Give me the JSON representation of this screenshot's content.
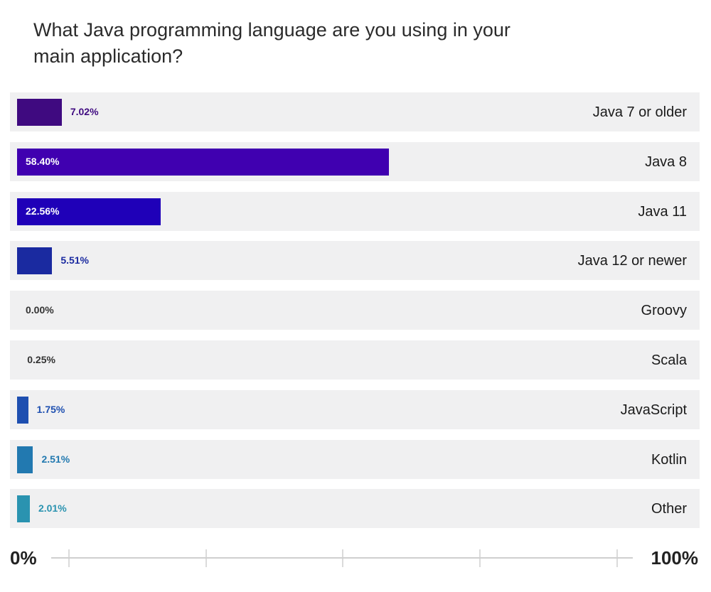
{
  "chart_data": {
    "type": "bar",
    "orientation": "horizontal",
    "title": "What Java programming language are you using in your main application?",
    "categories": [
      "Java 7 or older",
      "Java 8",
      "Java 11",
      "Java 12 or newer",
      "Groovy",
      "Scala",
      "JavaScript",
      "Kotlin",
      "Other"
    ],
    "values": [
      7.02,
      58.4,
      22.56,
      5.51,
      0.0,
      0.25,
      1.75,
      2.51,
      2.01
    ],
    "labels": [
      "7.02%",
      "58.40%",
      "22.56%",
      "5.51%",
      "0.00%",
      "0.25%",
      "1.75%",
      "2.51%",
      "2.01%"
    ],
    "colors": [
      "#3f0a80",
      "#4000b0",
      "#1f00b8",
      "#1a2aa0",
      "#1a2aa0",
      "#333333",
      "#1e4fb0",
      "#2279b0",
      "#2a93b0"
    ],
    "label_colors": [
      "#3f0a80",
      "#ffffff",
      "#ffffff",
      "#1a2aa0",
      "#333333",
      "#333333",
      "#1e4fb0",
      "#2279b0",
      "#2a93b0"
    ],
    "xlim": [
      0,
      100
    ],
    "axis_min_label": "0%",
    "axis_max_label": "100%",
    "grid": false
  }
}
